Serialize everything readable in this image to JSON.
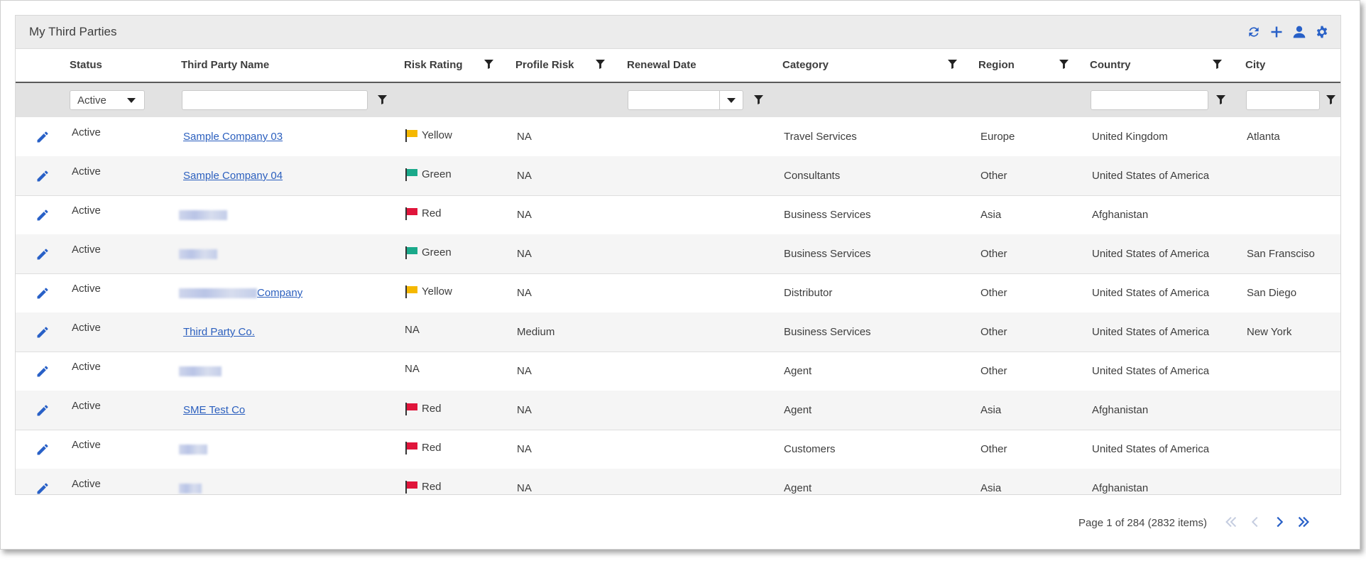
{
  "panel": {
    "title": "My Third Parties"
  },
  "toolbar": {
    "icons": [
      "refresh-icon",
      "plus-icon",
      "user-icon",
      "gear-icon"
    ]
  },
  "columns": [
    "Status",
    "Third Party Name",
    "Risk Rating",
    "Profile Risk",
    "Renewal Date",
    "Category",
    "Region",
    "Country",
    "City"
  ],
  "filters": {
    "status_value": "Active",
    "name_value": "",
    "date_value": "",
    "country_value": "",
    "city_value": ""
  },
  "colors": {
    "accent": "#2860c7",
    "link": "#2b5fbe",
    "yellow_flag": "#f5b800",
    "green_flag": "#1aa98a",
    "red_flag": "#e0153b"
  },
  "rows": [
    {
      "status": "Active",
      "name": "Sample Company 03",
      "name_redacted": false,
      "risk": "Yellow",
      "profile_risk": "NA",
      "renewal": "",
      "category": "Travel Services",
      "region": "Europe",
      "country": "United Kingdom",
      "city": "Atlanta"
    },
    {
      "status": "Active",
      "name": "Sample Company 04",
      "name_redacted": false,
      "risk": "Green",
      "profile_risk": "NA",
      "renewal": "",
      "category": "Consultants",
      "region": "Other",
      "country": "United States of America",
      "city": ""
    },
    {
      "status": "Active",
      "name": "",
      "name_redacted": true,
      "risk": "Red",
      "profile_risk": "NA",
      "renewal": "",
      "category": "Business Services",
      "region": "Asia",
      "country": "Afghanistan",
      "city": ""
    },
    {
      "status": "Active",
      "name": "",
      "name_redacted": true,
      "risk": "Green",
      "profile_risk": "NA",
      "renewal": "",
      "category": "Business Services",
      "region": "Other",
      "country": "United States of America",
      "city": "San Fransciso"
    },
    {
      "status": "Active",
      "name": "Company",
      "name_redacted": true,
      "risk": "Yellow",
      "profile_risk": "NA",
      "renewal": "",
      "category": "Distributor",
      "region": "Other",
      "country": "United States of America",
      "city": "San Diego"
    },
    {
      "status": "Active",
      "name": "Third Party Co.",
      "name_redacted": false,
      "risk": "NA",
      "profile_risk": "Medium",
      "renewal": "",
      "category": "Business Services",
      "region": "Other",
      "country": "United States of America",
      "city": "New York"
    },
    {
      "status": "Active",
      "name": "",
      "name_redacted": true,
      "risk": "NA",
      "profile_risk": "NA",
      "renewal": "",
      "category": "Agent",
      "region": "Other",
      "country": "United States of America",
      "city": ""
    },
    {
      "status": "Active",
      "name": "SME Test Co",
      "name_redacted": false,
      "risk": "Red",
      "profile_risk": "NA",
      "renewal": "",
      "category": "Agent",
      "region": "Asia",
      "country": "Afghanistan",
      "city": ""
    },
    {
      "status": "Active",
      "name": "",
      "name_redacted": true,
      "risk": "Red",
      "profile_risk": "NA",
      "renewal": "",
      "category": "Customers",
      "region": "Other",
      "country": "United States of America",
      "city": ""
    },
    {
      "status": "Active",
      "name": "",
      "name_redacted": true,
      "risk": "Red",
      "profile_risk": "NA",
      "renewal": "",
      "category": "Agent",
      "region": "Asia",
      "country": "Afghanistan",
      "city": ""
    }
  ],
  "pager": {
    "text_prefix": "Page",
    "current": "1",
    "text_mid": "of 284 (2832 items)"
  }
}
